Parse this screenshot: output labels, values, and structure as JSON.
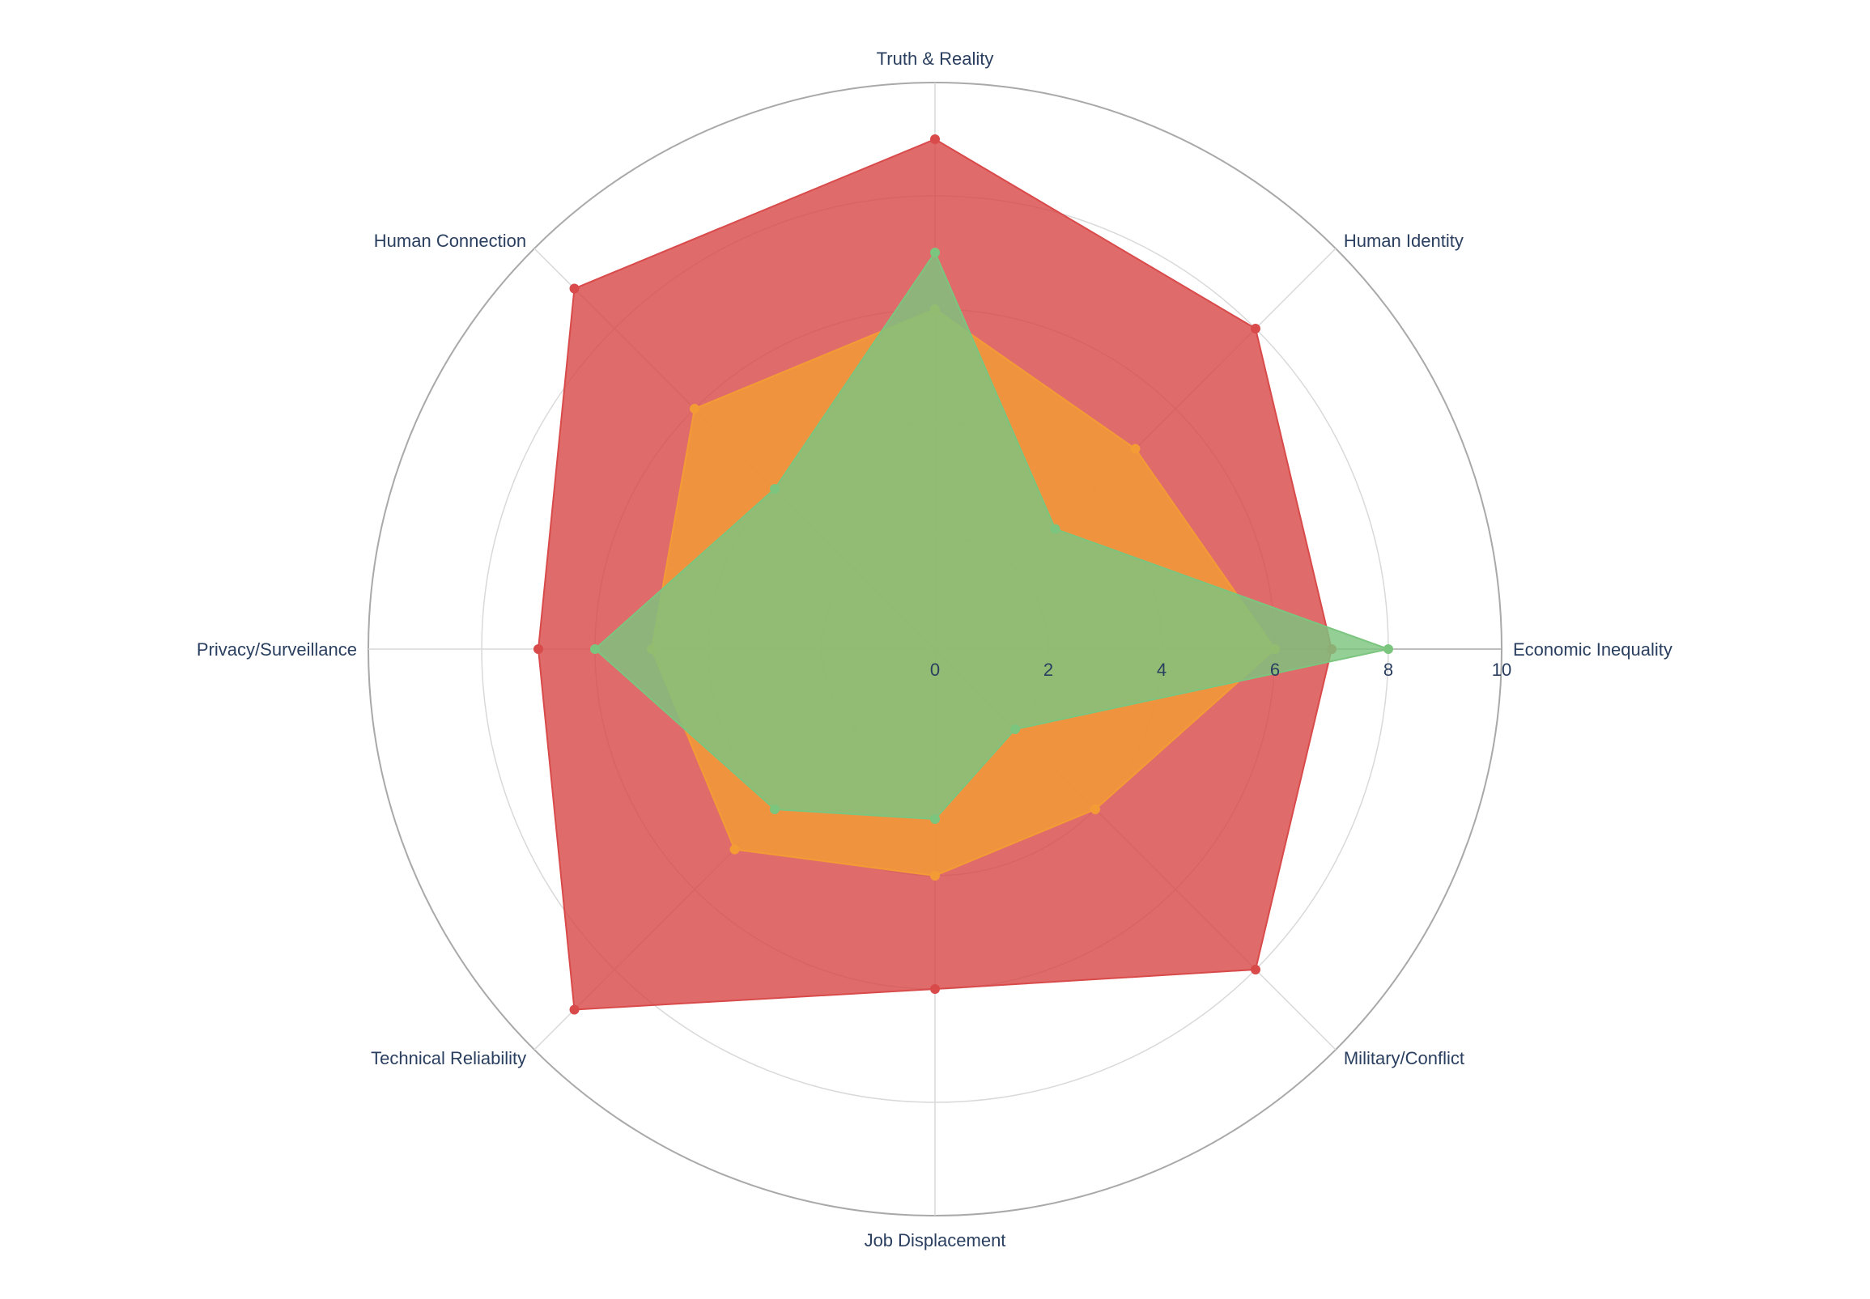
{
  "chart_data": {
    "type": "radar",
    "title": "",
    "axes": [
      "Economic Inequality",
      "Human Identity",
      "Truth & Reality",
      "Human Connection",
      "Privacy/Surveillance",
      "Technical Reliability",
      "Job Displacement",
      "Military/Conflict"
    ],
    "radial_range": [
      0,
      10
    ],
    "radial_ticks": [
      "0",
      "2",
      "4",
      "6",
      "8",
      "10"
    ],
    "grid": true,
    "legend": "none",
    "series": [
      {
        "color": "#d94a4a",
        "values": [
          7,
          8,
          9,
          9,
          7,
          9,
          6,
          8
        ]
      },
      {
        "color": "#f39c36",
        "values": [
          6,
          5,
          6,
          6,
          5,
          5,
          4,
          4
        ]
      },
      {
        "color": "#7cc57f",
        "values": [
          8,
          3,
          7,
          4,
          6,
          4,
          3,
          2
        ]
      }
    ]
  }
}
